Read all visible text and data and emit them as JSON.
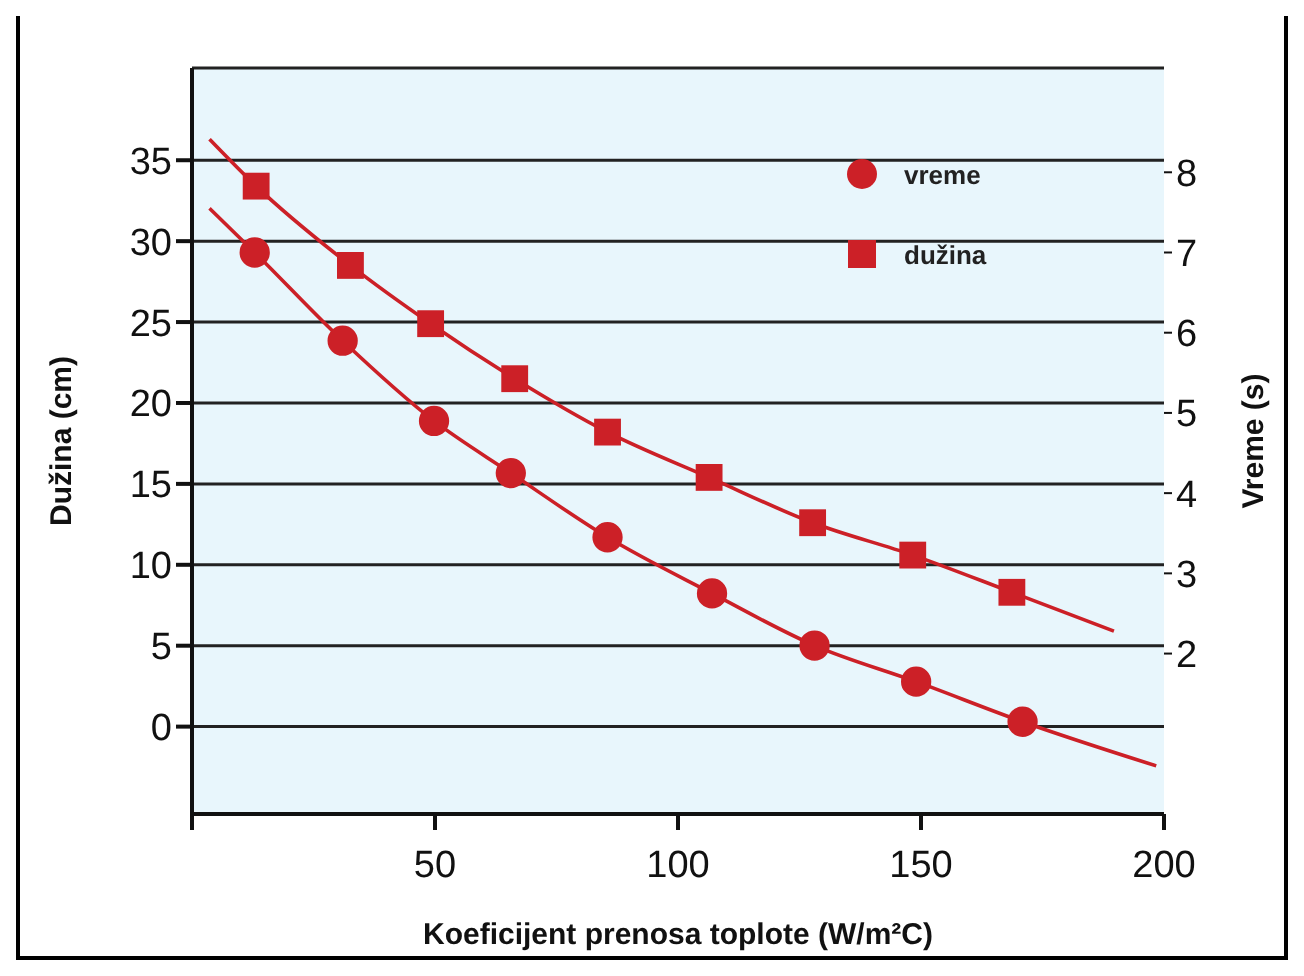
{
  "chart_data": {
    "type": "scatter",
    "xlabel": "Koeficijent prenosa toplote (W/m²C)",
    "ylabel": "Dužina (cm)",
    "y2label": "Vreme (s)",
    "xlim": [
      0,
      200
    ],
    "xticks": [
      {
        "value": 0,
        "label": null
      },
      50,
      100,
      150,
      200
    ],
    "ylim": [
      -5.4,
      40.7
    ],
    "yticks": [
      0,
      5,
      10,
      15,
      20,
      25,
      30,
      35
    ],
    "y2lim": [
      0,
      9.3
    ],
    "y2ticks": [
      2,
      3,
      4,
      5,
      6,
      7,
      8
    ],
    "grid": "y",
    "legend": "top right",
    "series": [
      {
        "name": "vreme",
        "type": "scatter",
        "marker": "circle",
        "axis": "y2",
        "color": "#cc2027",
        "x": [
          12.9,
          31,
          49.8,
          65.6,
          85.5,
          107,
          128.1,
          149,
          170.9
        ],
        "values": [
          7.0,
          5.9,
          4.9,
          4.25,
          3.45,
          2.75,
          2.1,
          1.65,
          1.15
        ]
      },
      {
        "name": "dužina",
        "type": "scatter",
        "marker": "square",
        "color": "#cc2027",
        "x": [
          13.2,
          32.6,
          49.1,
          66.4,
          85.5,
          106.4,
          127.7,
          148.3,
          168.7
        ],
        "values": [
          33.4,
          28.5,
          24.9,
          21.5,
          18.2,
          15.4,
          12.6,
          10.6,
          8.3
        ]
      },
      {
        "type": "line",
        "marker": "none",
        "axis": "y2",
        "color": "#cc2027",
        "x": [
          3.6,
          12.9,
          31,
          49.8,
          65.6,
          85.5,
          107,
          128.1,
          149,
          170.9,
          198.4
        ],
        "values": [
          7.55,
          7.0,
          5.9,
          4.9,
          4.25,
          3.45,
          2.75,
          2.1,
          1.65,
          1.15,
          0.6
        ]
      },
      {
        "type": "line",
        "marker": "none",
        "color": "#cc2027",
        "x": [
          3.6,
          13.2,
          32.6,
          49.1,
          66.4,
          85.5,
          106.4,
          127.7,
          148.3,
          168.7,
          189.7
        ],
        "values": [
          36.3,
          33.4,
          28.5,
          24.9,
          21.5,
          18.2,
          15.4,
          12.6,
          10.6,
          8.3,
          5.9
        ]
      }
    ]
  }
}
